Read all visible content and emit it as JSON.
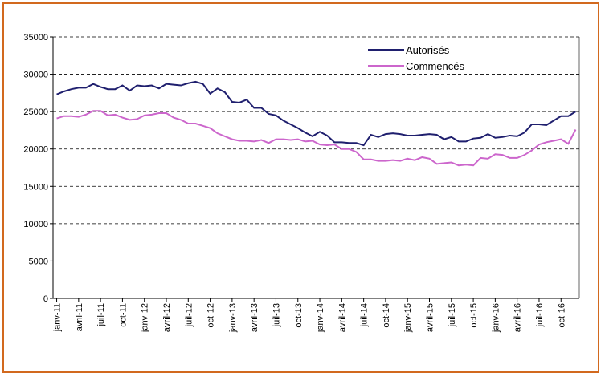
{
  "chart_data": {
    "type": "line",
    "categories": [
      "janv-11",
      null,
      null,
      "avril-11",
      null,
      null,
      "juil-11",
      null,
      null,
      "oct-11",
      null,
      null,
      "janv-12",
      null,
      null,
      "avril-12",
      null,
      null,
      "juil-12",
      null,
      null,
      "oct-12",
      null,
      null,
      "janv-13",
      null,
      null,
      "avril-13",
      null,
      null,
      "juil-13",
      null,
      null,
      "oct-13",
      null,
      null,
      "janv-14",
      null,
      null,
      "avril-14",
      null,
      null,
      "juil-14",
      null,
      null,
      "oct-14",
      null,
      null,
      "janv-15",
      null,
      null,
      "avril-15",
      null,
      null,
      "juil-15",
      null,
      null,
      "oct-15",
      null,
      null,
      "janv-16",
      null,
      null,
      "avril-16",
      null,
      null,
      "juil-16",
      null,
      null,
      "oct-16",
      null,
      null
    ],
    "series": [
      {
        "name": "Autorisés",
        "color": "#1f1f6e",
        "values": [
          27300,
          27700,
          28000,
          28200,
          28200,
          28700,
          28300,
          28000,
          28000,
          28500,
          27800,
          28500,
          28400,
          28500,
          28100,
          28700,
          28600,
          28500,
          28800,
          29000,
          28700,
          27400,
          28100,
          27600,
          26300,
          26200,
          26600,
          25500,
          25500,
          24700,
          24500,
          23800,
          23300,
          22800,
          22200,
          21700,
          22300,
          21800,
          20900,
          20900,
          20800,
          20800,
          20500,
          21900,
          21600,
          22000,
          22100,
          22000,
          21800,
          21800,
          21900,
          22000,
          21900,
          21300,
          21600,
          21000,
          21000,
          21400,
          21500,
          22000,
          21500,
          21600,
          21800,
          21700,
          22200,
          23300,
          23300,
          23200,
          23800,
          24400,
          24400,
          25000
        ]
      },
      {
        "name": "Commencés",
        "color": "#cc66cc",
        "values": [
          24100,
          24400,
          24400,
          24300,
          24600,
          25100,
          25100,
          24500,
          24600,
          24200,
          23900,
          24000,
          24500,
          24600,
          24800,
          24800,
          24200,
          23900,
          23400,
          23400,
          23100,
          22800,
          22100,
          21700,
          21300,
          21100,
          21100,
          21000,
          21200,
          20800,
          21300,
          21300,
          21200,
          21300,
          21000,
          21100,
          20600,
          20500,
          20600,
          20000,
          20000,
          19600,
          18600,
          18600,
          18400,
          18400,
          18500,
          18400,
          18700,
          18500,
          18900,
          18700,
          18000,
          18100,
          18200,
          17800,
          17900,
          17800,
          18800,
          18700,
          19300,
          19200,
          18800,
          18800,
          19200,
          19800,
          20600,
          20900,
          21100,
          21300,
          20700,
          22600
        ]
      }
    ],
    "ylim": [
      0,
      35000
    ],
    "yticks": [
      0,
      5000,
      10000,
      15000,
      20000,
      25000,
      30000,
      35000
    ],
    "grid": true
  }
}
